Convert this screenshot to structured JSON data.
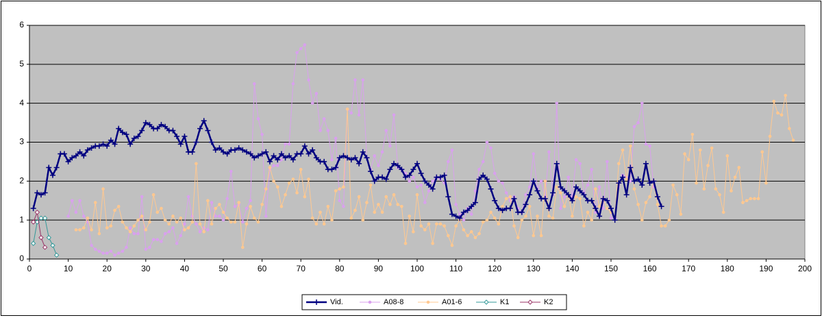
{
  "chart_data": {
    "type": "line",
    "xlim": [
      0,
      200
    ],
    "xticks": [
      0,
      10,
      20,
      30,
      40,
      50,
      60,
      70,
      80,
      90,
      100,
      110,
      120,
      130,
      140,
      150,
      160,
      170,
      180,
      190,
      200
    ],
    "ylim": [
      0,
      6
    ],
    "yticks": [
      0,
      1,
      2,
      3,
      4,
      5,
      6
    ],
    "grid": true,
    "legend": "bottom",
    "series": [
      {
        "name": "Vid.",
        "color": "#000080",
        "marker": "plus",
        "x": [
          1,
          2,
          3,
          4,
          5,
          6,
          7,
          8,
          9,
          10,
          11,
          12,
          13,
          14,
          15,
          16,
          17,
          18,
          19,
          20,
          21,
          22,
          23,
          24,
          25,
          26,
          27,
          28,
          29,
          30,
          31,
          32,
          33,
          34,
          35,
          36,
          37,
          38,
          39,
          40,
          41,
          42,
          43,
          44,
          45,
          46,
          47,
          48,
          49,
          50,
          51,
          52,
          53,
          54,
          55,
          56,
          57,
          58,
          59,
          60,
          61,
          62,
          63,
          64,
          65,
          66,
          67,
          68,
          69,
          70,
          71,
          72,
          73,
          74,
          75,
          76,
          77,
          78,
          79,
          80,
          81,
          82,
          83,
          84,
          85,
          86,
          87,
          88,
          89,
          90,
          91,
          92,
          93,
          94,
          95,
          96,
          97,
          98,
          99,
          100,
          101,
          102,
          103,
          104,
          105,
          106,
          107,
          108,
          109,
          110,
          111,
          112,
          113,
          114,
          115,
          116,
          117,
          118,
          119,
          120,
          121,
          122,
          123,
          124,
          125,
          126,
          127,
          128,
          129,
          130,
          131,
          132,
          133,
          134,
          135,
          136,
          137,
          138,
          139,
          140,
          141,
          142,
          143,
          144,
          145,
          146,
          147,
          148,
          149,
          150,
          151,
          152,
          153,
          154,
          155,
          156,
          157,
          158,
          159,
          160,
          161,
          162,
          163
        ],
        "values": [
          1.3,
          1.7,
          1.65,
          1.7,
          2.35,
          2.15,
          2.35,
          2.7,
          2.7,
          2.5,
          2.6,
          2.65,
          2.75,
          2.65,
          2.8,
          2.85,
          2.9,
          2.9,
          2.95,
          2.9,
          3.05,
          2.95,
          3.35,
          3.25,
          3.2,
          2.95,
          3.1,
          3.15,
          3.3,
          3.5,
          3.45,
          3.35,
          3.35,
          3.45,
          3.4,
          3.3,
          3.3,
          3.15,
          2.95,
          3.15,
          2.75,
          2.75,
          3.0,
          3.35,
          3.55,
          3.3,
          3.0,
          2.8,
          2.85,
          2.75,
          2.7,
          2.8,
          2.8,
          2.85,
          2.8,
          2.75,
          2.7,
          2.6,
          2.65,
          2.7,
          2.75,
          2.5,
          2.65,
          2.55,
          2.7,
          2.6,
          2.65,
          2.55,
          2.7,
          2.7,
          2.9,
          2.7,
          2.8,
          2.6,
          2.5,
          2.5,
          2.3,
          2.3,
          2.35,
          2.6,
          2.65,
          2.6,
          2.55,
          2.6,
          2.45,
          2.75,
          2.6,
          2.25,
          2.0,
          2.1,
          2.1,
          2.05,
          2.3,
          2.45,
          2.4,
          2.3,
          2.1,
          2.15,
          2.3,
          2.45,
          2.2,
          2.0,
          1.9,
          1.8,
          2.1,
          2.1,
          2.15,
          1.6,
          1.15,
          1.1,
          1.05,
          1.2,
          1.25,
          1.35,
          1.45,
          2.05,
          2.15,
          2.05,
          1.8,
          1.5,
          1.3,
          1.25,
          1.3,
          1.3,
          1.55,
          1.2,
          1.2,
          1.4,
          1.65,
          2.0,
          1.75,
          1.55,
          1.55,
          1.3,
          1.7,
          2.45,
          1.85,
          1.75,
          1.65,
          1.5,
          1.85,
          1.75,
          1.65,
          1.5,
          1.5,
          1.3,
          1.1,
          1.55,
          1.5,
          1.3,
          1.0,
          1.95,
          2.1,
          1.65,
          2.35,
          2.0,
          2.05,
          1.9,
          2.45,
          1.95,
          2.0,
          1.6,
          1.35
        ]
      },
      {
        "name": "A08-8",
        "color": "#d9a0ee",
        "marker": "dot",
        "x": [
          10,
          11,
          12,
          13,
          14,
          15,
          16,
          17,
          18,
          19,
          20,
          21,
          22,
          23,
          24,
          25,
          26,
          27,
          28,
          29,
          30,
          31,
          32,
          33,
          34,
          35,
          36,
          37,
          38,
          39,
          40,
          41,
          42,
          43,
          44,
          45,
          46,
          47,
          48,
          49,
          50,
          51,
          52,
          53,
          54,
          55,
          56,
          57,
          58,
          59,
          60,
          61,
          62,
          63,
          64,
          65,
          66,
          67,
          68,
          69,
          70,
          71,
          72,
          73,
          74,
          75,
          76,
          77,
          78,
          79,
          80,
          81,
          82,
          83,
          84,
          85,
          86,
          87,
          88,
          89,
          90,
          91,
          92,
          93,
          94,
          95,
          96,
          97,
          98,
          99,
          100,
          101,
          102,
          103,
          104,
          105,
          106,
          107,
          108,
          109,
          110,
          111,
          112,
          113,
          114,
          115,
          116,
          117,
          118,
          119,
          120,
          121,
          122,
          123,
          124,
          125,
          126,
          127,
          128,
          129,
          130,
          131,
          132,
          133,
          134,
          135,
          136,
          137,
          138,
          139,
          140,
          141,
          142,
          143,
          144,
          145,
          146,
          147,
          148,
          149,
          150,
          151,
          152,
          153,
          154,
          155,
          156,
          157,
          158,
          159,
          160,
          161
        ],
        "values": [
          1.1,
          1.5,
          1.2,
          1.5,
          1.1,
          0.95,
          0.35,
          0.25,
          0.2,
          0.15,
          0.15,
          0.2,
          0.1,
          0.15,
          0.2,
          0.3,
          0.8,
          0.65,
          0.65,
          1.6,
          0.25,
          0.3,
          0.5,
          0.5,
          0.45,
          0.65,
          0.7,
          0.8,
          0.4,
          0.6,
          0.9,
          1.6,
          1.1,
          0.9,
          0.7,
          0.8,
          0.75,
          1.45,
          1.1,
          1.1,
          1.0,
          1.55,
          2.25,
          1.35,
          1.4,
          0.95,
          1.3,
          1.5,
          4.5,
          3.6,
          3.2,
          1.1,
          2.3,
          2.4,
          2.4,
          2.55,
          2.95,
          2.95,
          4.5,
          5.3,
          5.4,
          5.5,
          4.6,
          4.0,
          4.25,
          3.3,
          3.6,
          3.3,
          2.55,
          3.1,
          1.5,
          1.35,
          3.85,
          3.75,
          4.6,
          3.7,
          4.6,
          2.6,
          2.3,
          2.65,
          2.4,
          2.75,
          3.3,
          2.9,
          3.7,
          2.35,
          2.3,
          2.2,
          2.0,
          2.1,
          1.85,
          1.9,
          1.45,
          1.75,
          2.0,
          2.1,
          2.05,
          1.95,
          2.5,
          2.8,
          1.4,
          1.15,
          1.0,
          1.3,
          1.15,
          1.75,
          2.3,
          2.5,
          3.0,
          2.85,
          2.2,
          2.0,
          1.95,
          1.7,
          1.5,
          1.6,
          1.3,
          1.2,
          1.65,
          1.85,
          2.7,
          1.8,
          2.0,
          1.6,
          2.75,
          1.65,
          4.0,
          1.3,
          1.6,
          2.1,
          1.6,
          2.55,
          2.45,
          1.7,
          1.9,
          2.3,
          1.2,
          1.85,
          1.3,
          2.5,
          1.05,
          1.05,
          1.85,
          2.15,
          2.1,
          2.0,
          3.4,
          3.5,
          4.0,
          2.95,
          2.9,
          1.85
        ]
      },
      {
        "name": "A01-6",
        "color": "#ffc890",
        "marker": "dot",
        "x": [
          12,
          13,
          14,
          15,
          16,
          17,
          18,
          19,
          20,
          21,
          22,
          23,
          24,
          25,
          26,
          27,
          28,
          29,
          30,
          31,
          32,
          33,
          34,
          35,
          36,
          37,
          38,
          39,
          40,
          41,
          42,
          43,
          44,
          45,
          46,
          47,
          48,
          49,
          50,
          51,
          52,
          53,
          54,
          55,
          56,
          57,
          58,
          59,
          60,
          61,
          62,
          63,
          64,
          65,
          66,
          67,
          68,
          69,
          70,
          71,
          72,
          73,
          74,
          75,
          76,
          77,
          78,
          79,
          80,
          81,
          82,
          83,
          84,
          85,
          86,
          87,
          88,
          89,
          90,
          91,
          92,
          93,
          94,
          95,
          96,
          97,
          98,
          99,
          100,
          101,
          102,
          103,
          104,
          105,
          106,
          107,
          108,
          109,
          110,
          111,
          112,
          113,
          114,
          115,
          116,
          117,
          118,
          119,
          120,
          121,
          122,
          123,
          124,
          125,
          126,
          127,
          128,
          129,
          130,
          131,
          132,
          133,
          134,
          135,
          136,
          137,
          138,
          139,
          140,
          141,
          142,
          143,
          144,
          145,
          146,
          147,
          148,
          149,
          150,
          151,
          152,
          153,
          154,
          155,
          156,
          157,
          158,
          159,
          160,
          161,
          162,
          163,
          164,
          165,
          166,
          167,
          168,
          169,
          170,
          171,
          172,
          173,
          174,
          175,
          176,
          177,
          178,
          179,
          180,
          181,
          182,
          183,
          184,
          185,
          186,
          187,
          188,
          189,
          190,
          191,
          192,
          193,
          194,
          195,
          196,
          197
        ],
        "values": [
          0.75,
          0.75,
          0.8,
          1.05,
          0.75,
          1.45,
          0.65,
          1.8,
          0.8,
          0.85,
          1.25,
          1.35,
          0.95,
          0.8,
          0.7,
          0.85,
          1.0,
          1.1,
          0.75,
          0.95,
          1.65,
          1.2,
          1.3,
          1.0,
          0.9,
          1.1,
          0.95,
          1.05,
          0.75,
          0.8,
          0.95,
          2.45,
          0.9,
          0.7,
          1.5,
          0.9,
          1.3,
          1.4,
          1.2,
          1.05,
          0.95,
          0.95,
          1.45,
          0.3,
          0.9,
          1.35,
          1.05,
          0.95,
          1.4,
          1.8,
          2.35,
          2.0,
          1.85,
          1.35,
          1.65,
          1.95,
          2.05,
          1.7,
          2.3,
          1.6,
          2.05,
          1.05,
          0.9,
          1.2,
          0.9,
          1.35,
          1.0,
          1.75,
          1.8,
          1.85,
          3.85,
          1.05,
          1.25,
          1.6,
          1.0,
          1.45,
          1.9,
          1.2,
          1.4,
          1.2,
          1.6,
          1.4,
          1.65,
          1.4,
          1.35,
          0.4,
          1.1,
          0.7,
          1.65,
          0.85,
          0.75,
          0.9,
          0.4,
          0.9,
          0.9,
          0.85,
          0.6,
          0.35,
          0.85,
          1.0,
          0.75,
          0.6,
          0.7,
          0.55,
          0.65,
          0.95,
          1.0,
          1.2,
          1.05,
          0.9,
          1.35,
          1.55,
          1.6,
          0.85,
          0.55,
          1.0,
          1.1,
          1.35,
          0.6,
          1.1,
          0.6,
          2.0,
          1.1,
          1.05,
          1.85,
          1.7,
          1.35,
          1.65,
          1.1,
          1.6,
          1.55,
          0.85,
          1.2,
          1.0,
          1.8,
          1.35,
          1.55,
          1.3,
          1.2,
          1.1,
          2.45,
          2.8,
          2.05,
          2.9,
          1.8,
          1.4,
          1.0,
          1.45,
          1.6,
          2.0,
          1.4,
          0.85,
          0.85,
          1.0,
          1.9,
          1.65,
          1.15,
          2.7,
          2.55,
          3.2,
          1.95,
          2.8,
          1.8,
          2.4,
          2.85,
          1.8,
          1.65,
          1.2,
          2.65,
          1.75,
          2.1,
          2.35,
          1.45,
          1.5,
          1.55,
          1.55,
          1.55,
          2.75,
          1.95,
          3.15,
          4.05,
          3.75,
          3.7,
          4.2,
          3.35,
          3.05
        ]
      },
      {
        "name": "K1",
        "color": "#339999",
        "marker": "diamond",
        "x": [
          1,
          2,
          3,
          4,
          5,
          6,
          7
        ],
        "values": [
          0.4,
          0.95,
          1.05,
          1.05,
          0.55,
          0.35,
          0.1
        ]
      },
      {
        "name": "K2",
        "color": "#993366",
        "marker": "diamond",
        "x": [
          1,
          2,
          3,
          4
        ],
        "values": [
          0.95,
          1.2,
          0.55,
          0.3
        ]
      }
    ]
  }
}
